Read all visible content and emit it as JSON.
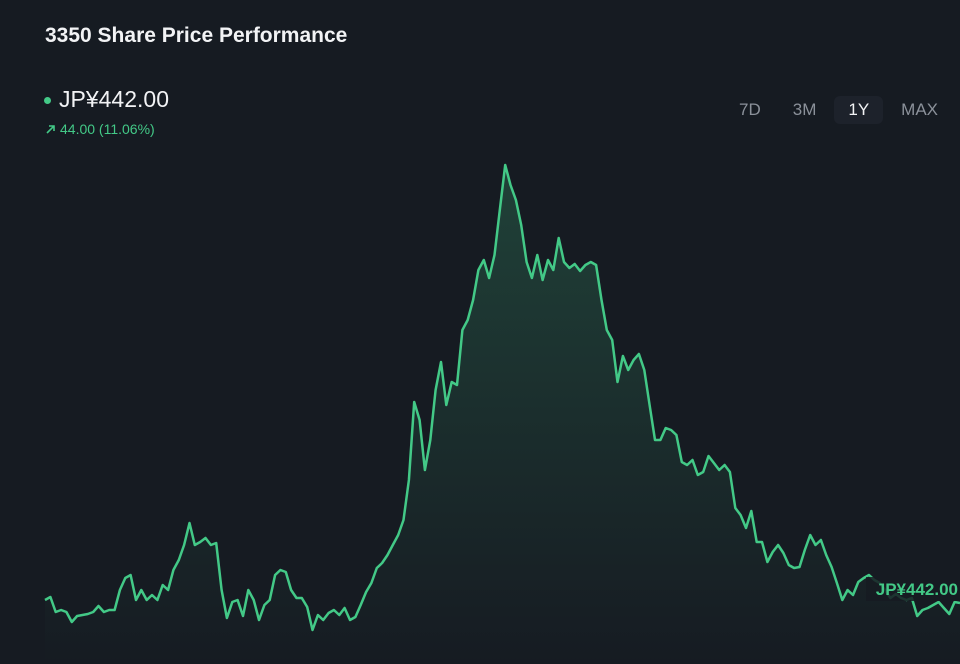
{
  "header": {
    "title": "3350 Share Price Performance",
    "price": "JP¥442.00",
    "change": "44.00 (11.06%)"
  },
  "ranges": {
    "options": [
      "7D",
      "3M",
      "1Y",
      "MAX"
    ],
    "active": 2
  },
  "chart_data": {
    "type": "line",
    "color": "#43c987",
    "end_label": "JP¥442.00",
    "ylim": [
      400,
      900
    ],
    "values": [
      445,
      448,
      433,
      435,
      433,
      423,
      429,
      430,
      431,
      433,
      439,
      433,
      435,
      435,
      455,
      467,
      470,
      445,
      455,
      445,
      450,
      445,
      460,
      455,
      475,
      485,
      500,
      522,
      500,
      503,
      507,
      500,
      502,
      455,
      427,
      443,
      445,
      429,
      455,
      445,
      425,
      440,
      445,
      470,
      475,
      473,
      455,
      447,
      447,
      438,
      415,
      430,
      425,
      432,
      435,
      430,
      437,
      425,
      428,
      440,
      453,
      462,
      477,
      482,
      490,
      500,
      510,
      525,
      565,
      643,
      625,
      575,
      605,
      655,
      683,
      640,
      663,
      660,
      715,
      725,
      745,
      775,
      785,
      767,
      790,
      835,
      880,
      860,
      845,
      820,
      783,
      767,
      790,
      765,
      785,
      775,
      807,
      783,
      777,
      781,
      774,
      780,
      783,
      780,
      745,
      715,
      705,
      663,
      689,
      675,
      685,
      691,
      675,
      640,
      605,
      605,
      617,
      615,
      610,
      583,
      580,
      585,
      570,
      573,
      589,
      582,
      575,
      580,
      573,
      537,
      530,
      517,
      534,
      503,
      503,
      483,
      493,
      500,
      492,
      480,
      477,
      478,
      495,
      510,
      500,
      505,
      490,
      478,
      462,
      445,
      455,
      450,
      463,
      467,
      470,
      465,
      462,
      455,
      447,
      451,
      447,
      445,
      447,
      429,
      435,
      437,
      440,
      443,
      437,
      431,
      443,
      442
    ]
  }
}
